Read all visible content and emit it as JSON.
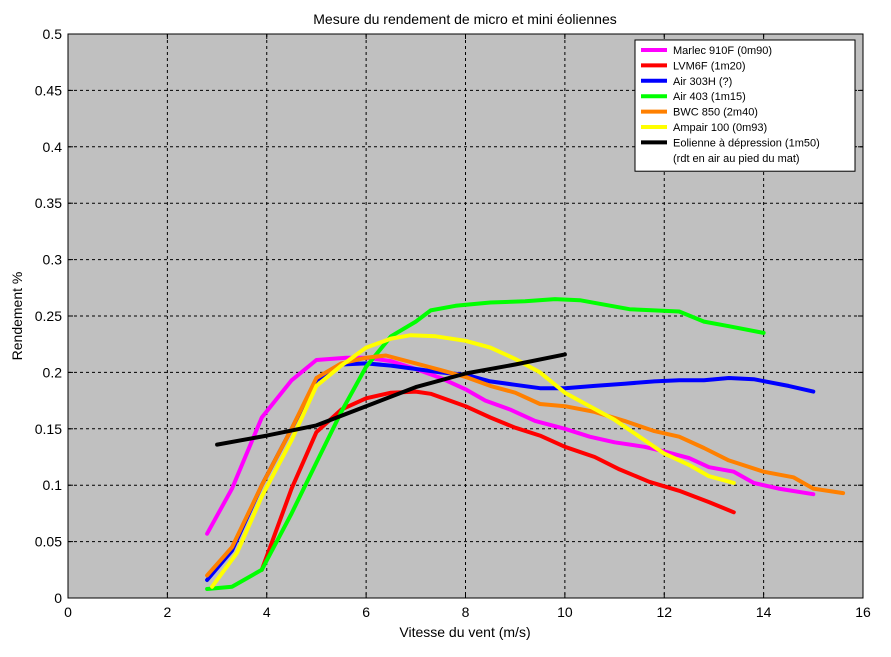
{
  "chart_data": {
    "type": "line",
    "title": "Mesure du rendement de micro et mini éoliennes",
    "xlabel": "Vitesse du vent (m/s)",
    "ylabel": "Rendement %",
    "xlim": [
      0,
      16
    ],
    "ylim": [
      0,
      0.5
    ],
    "xticks": [
      "0",
      "2",
      "4",
      "6",
      "8",
      "10",
      "12",
      "14",
      "16"
    ],
    "yticks": [
      "0",
      "0.05",
      "0.1",
      "0.15",
      "0.2",
      "0.25",
      "0.3",
      "0.35",
      "0.4",
      "0.45",
      "0.5"
    ],
    "grid": true,
    "plot_background": "#c0c0c0",
    "legend_position": "top-right",
    "series": [
      {
        "name": "Marlec 910F (0m90)",
        "color": "#ff00ff",
        "points": [
          [
            2.8,
            0.057
          ],
          [
            3.3,
            0.097
          ],
          [
            3.9,
            0.16
          ],
          [
            4.5,
            0.193
          ],
          [
            5.0,
            0.211
          ],
          [
            5.6,
            0.213
          ],
          [
            6.0,
            0.213
          ],
          [
            6.5,
            0.21
          ],
          [
            7.0,
            0.203
          ],
          [
            7.5,
            0.195
          ],
          [
            8.0,
            0.185
          ],
          [
            8.4,
            0.175
          ],
          [
            8.9,
            0.167
          ],
          [
            9.4,
            0.157
          ],
          [
            10.0,
            0.15
          ],
          [
            10.5,
            0.143
          ],
          [
            11.0,
            0.138
          ],
          [
            11.6,
            0.134
          ],
          [
            12.0,
            0.13
          ],
          [
            12.5,
            0.124
          ],
          [
            12.9,
            0.116
          ],
          [
            13.4,
            0.112
          ],
          [
            13.8,
            0.102
          ],
          [
            14.3,
            0.097
          ],
          [
            15.0,
            0.092
          ]
        ]
      },
      {
        "name": "LVM6F (1m20)",
        "color": "#ff0000",
        "points": [
          [
            3.9,
            0.025
          ],
          [
            4.5,
            0.097
          ],
          [
            5.0,
            0.147
          ],
          [
            5.5,
            0.167
          ],
          [
            6.0,
            0.177
          ],
          [
            6.5,
            0.182
          ],
          [
            7.0,
            0.183
          ],
          [
            7.3,
            0.181
          ],
          [
            8.0,
            0.17
          ],
          [
            8.5,
            0.16
          ],
          [
            9.0,
            0.151
          ],
          [
            9.5,
            0.144
          ],
          [
            10.0,
            0.134
          ],
          [
            10.6,
            0.125
          ],
          [
            11.1,
            0.114
          ],
          [
            11.7,
            0.103
          ],
          [
            12.3,
            0.095
          ],
          [
            12.9,
            0.085
          ],
          [
            13.4,
            0.076
          ]
        ]
      },
      {
        "name": "Air 303H (?)",
        "color": "#0000ff",
        "points": [
          [
            2.8,
            0.016
          ],
          [
            3.3,
            0.042
          ],
          [
            3.9,
            0.1
          ],
          [
            4.5,
            0.15
          ],
          [
            5.0,
            0.193
          ],
          [
            5.5,
            0.207
          ],
          [
            6.0,
            0.208
          ],
          [
            6.5,
            0.206
          ],
          [
            7.0,
            0.203
          ],
          [
            7.5,
            0.2
          ],
          [
            8.0,
            0.198
          ],
          [
            8.5,
            0.192
          ],
          [
            9.0,
            0.189
          ],
          [
            9.5,
            0.186
          ],
          [
            10.0,
            0.186
          ],
          [
            10.6,
            0.188
          ],
          [
            11.2,
            0.19
          ],
          [
            11.8,
            0.192
          ],
          [
            12.3,
            0.193
          ],
          [
            12.8,
            0.193
          ],
          [
            13.3,
            0.195
          ],
          [
            13.8,
            0.194
          ],
          [
            14.5,
            0.188
          ],
          [
            15.0,
            0.183
          ]
        ]
      },
      {
        "name": "Air 403 (1m15)",
        "color": "#00ff00",
        "points": [
          [
            2.8,
            0.008
          ],
          [
            3.3,
            0.01
          ],
          [
            3.9,
            0.025
          ],
          [
            4.5,
            0.075
          ],
          [
            5.0,
            0.12
          ],
          [
            5.5,
            0.165
          ],
          [
            6.0,
            0.205
          ],
          [
            6.5,
            0.232
          ],
          [
            7.0,
            0.245
          ],
          [
            7.3,
            0.255
          ],
          [
            7.8,
            0.259
          ],
          [
            8.5,
            0.262
          ],
          [
            9.2,
            0.263
          ],
          [
            9.8,
            0.265
          ],
          [
            10.3,
            0.264
          ],
          [
            10.8,
            0.26
          ],
          [
            11.3,
            0.256
          ],
          [
            11.8,
            0.255
          ],
          [
            12.3,
            0.254
          ],
          [
            12.8,
            0.245
          ],
          [
            13.3,
            0.241
          ],
          [
            14.0,
            0.235
          ]
        ]
      },
      {
        "name": "BWC 850 (2m40)",
        "color": "#ff8000",
        "points": [
          [
            2.8,
            0.02
          ],
          [
            3.3,
            0.045
          ],
          [
            3.9,
            0.1
          ],
          [
            4.5,
            0.15
          ],
          [
            5.0,
            0.195
          ],
          [
            5.5,
            0.208
          ],
          [
            6.0,
            0.213
          ],
          [
            6.4,
            0.215
          ],
          [
            7.0,
            0.208
          ],
          [
            7.5,
            0.202
          ],
          [
            8.0,
            0.196
          ],
          [
            8.5,
            0.188
          ],
          [
            9.0,
            0.182
          ],
          [
            9.5,
            0.172
          ],
          [
            10.0,
            0.17
          ],
          [
            10.6,
            0.165
          ],
          [
            11.2,
            0.157
          ],
          [
            11.8,
            0.148
          ],
          [
            12.3,
            0.143
          ],
          [
            12.8,
            0.133
          ],
          [
            13.3,
            0.122
          ],
          [
            14.0,
            0.112
          ],
          [
            14.6,
            0.107
          ],
          [
            15.0,
            0.097
          ],
          [
            15.6,
            0.093
          ]
        ]
      },
      {
        "name": "Ampair 100 (0m93)",
        "color": "#ffff00",
        "points": [
          [
            2.9,
            0.01
          ],
          [
            3.4,
            0.04
          ],
          [
            3.9,
            0.09
          ],
          [
            4.5,
            0.14
          ],
          [
            5.0,
            0.188
          ],
          [
            5.5,
            0.206
          ],
          [
            6.0,
            0.222
          ],
          [
            6.5,
            0.23
          ],
          [
            6.9,
            0.233
          ],
          [
            7.4,
            0.232
          ],
          [
            8.0,
            0.228
          ],
          [
            8.5,
            0.222
          ],
          [
            9.0,
            0.212
          ],
          [
            9.5,
            0.2
          ],
          [
            10.0,
            0.182
          ],
          [
            10.5,
            0.17
          ],
          [
            11.0,
            0.158
          ],
          [
            11.5,
            0.143
          ],
          [
            12.0,
            0.128
          ],
          [
            12.5,
            0.118
          ],
          [
            12.9,
            0.108
          ],
          [
            13.4,
            0.102
          ]
        ]
      },
      {
        "name": "Eolienne à dépression (1m50)",
        "color": "#000000",
        "points": [
          [
            3.0,
            0.136
          ],
          [
            4.0,
            0.144
          ],
          [
            5.0,
            0.153
          ],
          [
            6.0,
            0.17
          ],
          [
            7.0,
            0.187
          ],
          [
            8.0,
            0.199
          ],
          [
            9.0,
            0.207
          ],
          [
            10.0,
            0.216
          ]
        ]
      }
    ],
    "legend_note": "(rdt en air au pied du mat)"
  }
}
